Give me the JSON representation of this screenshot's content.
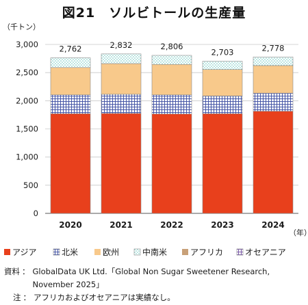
{
  "chart_data": {
    "type": "bar",
    "stacked": true,
    "title": "図21　ソルビトールの生産量",
    "ylabel": "（千トン）",
    "xlabel": "（年）",
    "categories": [
      "2020",
      "2021",
      "2022",
      "2023",
      "2024"
    ],
    "ylim": [
      0,
      3000
    ],
    "yticks": [
      0,
      500,
      1000,
      1500,
      2000,
      2500,
      3000
    ],
    "ytick_labels": [
      "0",
      "500",
      "1,000",
      "1,500",
      "2,000",
      "2,500",
      "3,000"
    ],
    "grid": true,
    "legend_position": "bottom",
    "totals": [
      2762,
      2832,
      2806,
      2703,
      2778
    ],
    "total_labels": [
      "2,762",
      "2,832",
      "2,806",
      "2,703",
      "2,778"
    ],
    "series": [
      {
        "name": "アジア",
        "values": [
          1770,
          1775,
          1765,
          1770,
          1815
        ],
        "color": "#e8401c",
        "pattern": "solid"
      },
      {
        "name": "北米",
        "values": [
          335,
          340,
          340,
          315,
          320
        ],
        "color": "#4656a6",
        "pattern": "grid"
      },
      {
        "name": "欧州",
        "values": [
          485,
          545,
          540,
          470,
          490
        ],
        "color": "#f8c98b",
        "pattern": "solid"
      },
      {
        "name": "中南米",
        "values": [
          172,
          172,
          161,
          148,
          153
        ],
        "color": "#6ec8c0",
        "pattern": "dots"
      },
      {
        "name": "アフリカ",
        "values": [
          0,
          0,
          0,
          0,
          0
        ],
        "color": "#c8a078",
        "pattern": "solid"
      },
      {
        "name": "オセアニア",
        "values": [
          0,
          0,
          0,
          0,
          0
        ],
        "color": "#7a5aa8",
        "pattern": "grid"
      }
    ]
  },
  "notes": {
    "source_label": "資料",
    "source_text": "GlobalData UK Ltd.「Global Non Sugar Sweetener Research, November 2025」",
    "note_label": "注",
    "note_text": "アフリカおよびオセアニアは実績なし。"
  }
}
